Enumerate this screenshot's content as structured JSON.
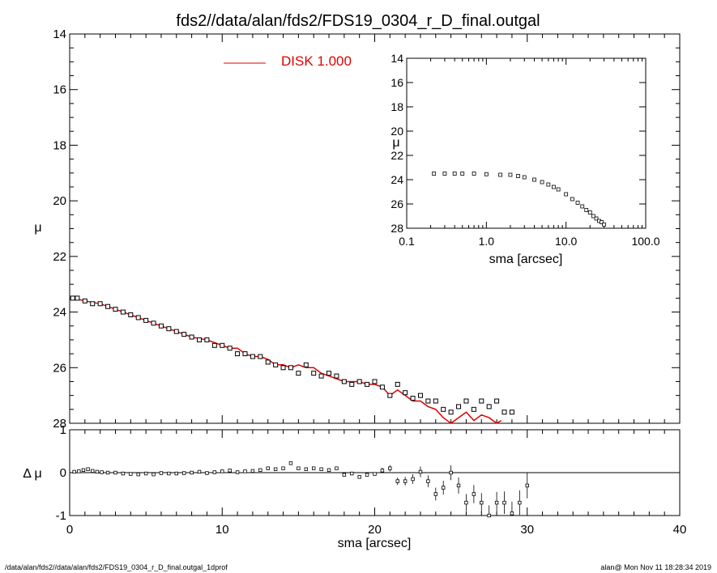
{
  "title": "fds2//data/alan/fds2/FDS19_0304_r_D_final.outgal",
  "footer_left": "/data/alan/fds2//data/alan/fds2/FDS19_0304_r_D_final.outgal_1dprof",
  "footer_right": "alan@  Mon Nov 11 18:28:34 2019",
  "colors": {
    "model": "#e00000",
    "data": "#000000"
  },
  "chart_data": [
    {
      "type": "scatter",
      "panel": "main",
      "ylabel": "μ",
      "xlabel": "",
      "xlim": [
        0,
        40
      ],
      "ylim": [
        28,
        14
      ],
      "x_ticks": [
        "0",
        "10",
        "20",
        "30",
        "40"
      ],
      "y_ticks": [
        "14",
        "16",
        "18",
        "20",
        "22",
        "24",
        "26",
        "28"
      ],
      "legend": {
        "label": "DISK  1.000",
        "placement": "top-left"
      },
      "series": [
        {
          "name": "DISK  1.000",
          "kind": "line",
          "x": [
            0.2,
            1,
            2,
            3,
            3.5,
            4,
            5,
            6,
            7,
            8,
            9,
            10,
            10.5,
            11,
            11.5,
            12,
            12.5,
            13,
            13.5,
            14,
            14.5,
            15,
            15.5,
            16,
            16.5,
            17,
            17.5,
            18,
            18.5,
            19,
            19.5,
            20,
            20.5,
            21,
            21.5,
            22,
            22.5,
            23,
            23.5,
            24,
            24.5,
            25,
            25.5,
            26,
            26.5,
            27,
            27.5,
            28,
            28.3
          ],
          "y": [
            23.5,
            23.6,
            23.7,
            23.9,
            24.0,
            24.1,
            24.3,
            24.5,
            24.7,
            24.9,
            25.0,
            25.2,
            25.3,
            25.3,
            25.5,
            25.6,
            25.6,
            25.7,
            25.9,
            25.9,
            26.0,
            25.9,
            26.0,
            26.0,
            26.2,
            26.3,
            26.4,
            26.5,
            26.5,
            26.5,
            26.6,
            26.6,
            26.7,
            27.0,
            26.8,
            27.0,
            27.2,
            27.2,
            27.4,
            27.5,
            27.8,
            28.0,
            27.8,
            27.6,
            27.9,
            27.7,
            27.8,
            28.0,
            27.9
          ]
        },
        {
          "name": "",
          "kind": "points",
          "x": [
            0.2,
            0.5,
            1,
            1.5,
            2,
            2.5,
            3,
            3.5,
            4,
            4.5,
            5,
            5.5,
            6,
            6.5,
            7,
            7.5,
            8,
            8.5,
            9,
            9.5,
            10,
            10.5,
            11,
            11.5,
            12,
            12.5,
            13,
            13.5,
            14,
            14.5,
            15,
            15.5,
            16,
            16.5,
            17,
            17.5,
            18,
            18.5,
            19,
            19.5,
            20,
            20.5,
            21,
            21.5,
            22,
            22.5,
            23,
            23.5,
            24,
            24.5,
            25,
            25.5,
            26,
            26.5,
            27,
            27.5,
            28,
            28.5,
            29
          ],
          "y": [
            23.5,
            23.5,
            23.6,
            23.7,
            23.7,
            23.8,
            23.9,
            24.0,
            24.1,
            24.2,
            24.3,
            24.4,
            24.5,
            24.6,
            24.7,
            24.8,
            24.9,
            25.0,
            25.0,
            25.2,
            25.2,
            25.3,
            25.5,
            25.5,
            25.6,
            25.6,
            25.8,
            25.9,
            26.0,
            26.0,
            26.2,
            25.9,
            26.2,
            26.3,
            26.2,
            26.3,
            26.5,
            26.6,
            26.5,
            26.6,
            26.5,
            26.7,
            27.0,
            26.6,
            26.9,
            27.1,
            27.0,
            27.2,
            27.2,
            27.5,
            27.6,
            27.4,
            27.2,
            27.5,
            27.2,
            27.4,
            27.2,
            27.6,
            27.6
          ]
        }
      ]
    },
    {
      "type": "scatter",
      "panel": "inset",
      "ylabel": "μ",
      "xlabel": "sma [arcsec]",
      "xscale": "log",
      "xlim": [
        0.1,
        100.0
      ],
      "ylim": [
        28,
        14
      ],
      "x_ticks": [
        "0.1",
        "1.0",
        "10.0",
        "100.0"
      ],
      "y_ticks": [
        "14",
        "16",
        "18",
        "20",
        "22",
        "24",
        "26",
        "28"
      ],
      "series": [
        {
          "name": "",
          "kind": "points",
          "x": [
            0.22,
            0.3,
            0.4,
            0.5,
            0.7,
            1.0,
            1.5,
            2.0,
            2.5,
            3.0,
            4.0,
            5.0,
            6.0,
            7.0,
            8.0,
            10.0,
            12.0,
            14.0,
            16.0,
            18.0,
            20.0,
            22.0,
            24.0,
            26.0,
            28.0,
            30.0
          ],
          "y": [
            23.5,
            23.5,
            23.5,
            23.5,
            23.5,
            23.55,
            23.6,
            23.6,
            23.7,
            23.8,
            24.0,
            24.2,
            24.4,
            24.6,
            24.8,
            25.2,
            25.6,
            25.9,
            26.2,
            26.5,
            26.7,
            27.0,
            27.2,
            27.4,
            27.5,
            27.7
          ]
        }
      ]
    },
    {
      "type": "scatter",
      "panel": "residual",
      "ylabel": "Δ μ",
      "xlabel": "sma [arcsec]",
      "xlim": [
        0,
        40
      ],
      "ylim": [
        -1,
        1
      ],
      "x_ticks": [
        "0",
        "10",
        "20",
        "30",
        "40"
      ],
      "y_ticks": [
        "1",
        "0",
        "-1"
      ],
      "series": [
        {
          "name": "",
          "kind": "points",
          "x": [
            0.3,
            0.6,
            0.9,
            1.2,
            1.5,
            1.8,
            2.1,
            2.5,
            3,
            3.5,
            4,
            4.5,
            5,
            5.5,
            6,
            6.5,
            7,
            7.5,
            8,
            8.5,
            9,
            9.5,
            10,
            10.5,
            11,
            11.5,
            12,
            12.5,
            13,
            13.5,
            14,
            14.5,
            15,
            15.5,
            16,
            16.5,
            17,
            17.5,
            18,
            18.5,
            19,
            19.5,
            20,
            20.5,
            21,
            21.5,
            22,
            22.5,
            23,
            23.5,
            24,
            24.5,
            25,
            25.5,
            26,
            26.5,
            27,
            27.5,
            28,
            28.5,
            29,
            29.5,
            30
          ],
          "y": [
            0.02,
            0.03,
            0.06,
            0.08,
            0.04,
            0.02,
            0.01,
            0,
            0,
            -0.02,
            -0.03,
            -0.04,
            -0.02,
            -0.04,
            -0.01,
            -0.02,
            -0.02,
            -0.01,
            0,
            0.02,
            -0.01,
            0.01,
            0.03,
            0.05,
            0.01,
            0.03,
            0.04,
            0.06,
            0.1,
            0.08,
            0.1,
            0.22,
            0.1,
            0.08,
            0.1,
            0.08,
            0.06,
            0.1,
            -0.05,
            -0.02,
            -0.1,
            -0.05,
            -0.03,
            0.05,
            0.1,
            -0.2,
            -0.2,
            -0.15,
            0.02,
            -0.2,
            -0.5,
            -0.35,
            0.0,
            -0.3,
            -0.7,
            -0.5,
            -0.7,
            -1.0,
            -0.7,
            -0.7,
            -0.95,
            -0.7,
            -0.3
          ],
          "error_bars": true
        }
      ]
    }
  ]
}
